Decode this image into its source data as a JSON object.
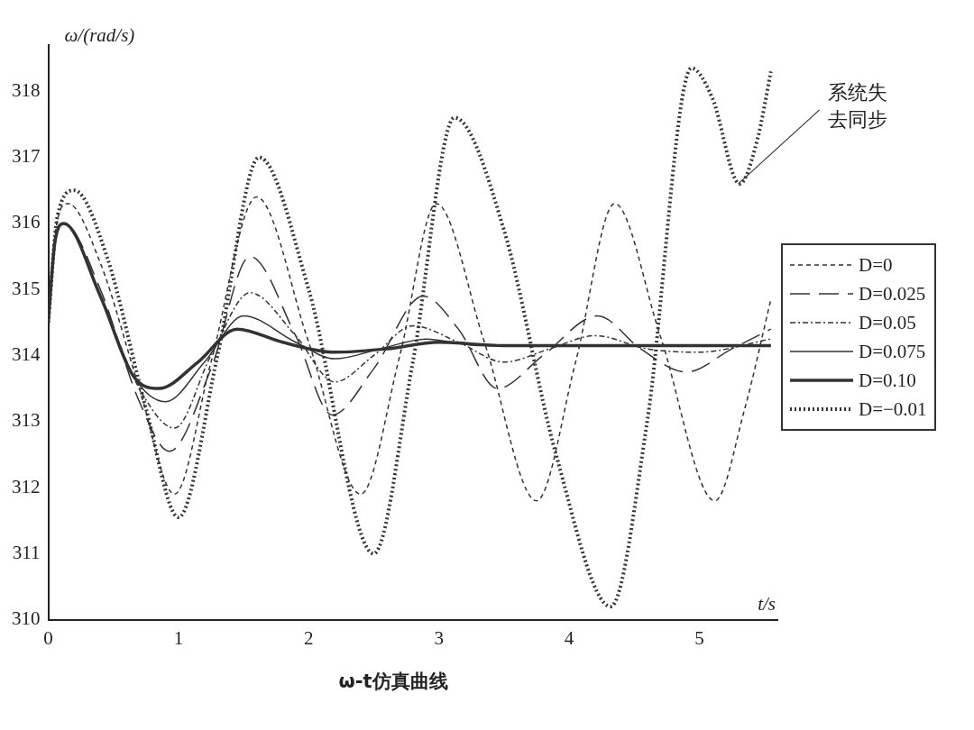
{
  "chart_data": {
    "type": "line",
    "title": "ω-t仿真曲线",
    "xlabel": "t/s",
    "ylabel": "ω/(rad/s)",
    "xlim": [
      0,
      5.6
    ],
    "ylim": [
      310,
      318.7
    ],
    "xticks": [
      0,
      1,
      2,
      3,
      4,
      5
    ],
    "yticks": [
      310,
      311,
      312,
      313,
      314,
      315,
      316,
      317,
      318
    ],
    "grid": false,
    "legend": "right",
    "marker": "none",
    "annotations": [
      {
        "text": "系统失去同步",
        "x": 5.3,
        "y": 316.6
      }
    ],
    "series": [
      {
        "name": "D=0",
        "color": "#333333",
        "line_style": "dashed",
        "x": [
          0,
          0.05,
          0.15,
          0.4,
          0.7,
          0.97,
          1.25,
          1.6,
          2.0,
          2.4,
          2.7,
          2.98,
          3.35,
          3.75,
          4.05,
          4.35,
          4.7,
          5.12,
          5.35,
          5.55
        ],
        "values": [
          314.5,
          315.8,
          316.3,
          315.4,
          313.5,
          311.9,
          313.9,
          316.4,
          314.2,
          311.9,
          314.0,
          316.3,
          314.2,
          311.8,
          313.9,
          316.3,
          314.3,
          311.8,
          313.2,
          314.85
        ]
      },
      {
        "name": "D=0.025",
        "color": "#333333",
        "line_style": "dashed",
        "x": [
          0,
          0.05,
          0.12,
          0.4,
          0.7,
          0.93,
          1.25,
          1.55,
          1.9,
          2.18,
          2.5,
          2.88,
          3.15,
          3.45,
          3.8,
          4.22,
          4.55,
          4.9,
          5.25,
          5.55
        ],
        "values": [
          314.5,
          315.7,
          316.0,
          315.0,
          313.3,
          312.55,
          313.8,
          315.5,
          314.3,
          313.1,
          313.8,
          314.9,
          314.4,
          313.5,
          314.0,
          314.6,
          314.1,
          313.75,
          314.1,
          314.4
        ]
      },
      {
        "name": "D=0.05",
        "color": "#333333",
        "line_style": "dashed",
        "x": [
          0,
          0.05,
          0.12,
          0.4,
          0.7,
          0.97,
          1.25,
          1.55,
          1.9,
          2.2,
          2.5,
          2.8,
          3.15,
          3.5,
          3.85,
          4.2,
          4.6,
          5.0,
          5.55
        ],
        "values": [
          314.5,
          315.7,
          316.0,
          314.9,
          313.5,
          312.9,
          314.0,
          314.95,
          314.3,
          313.6,
          314.0,
          314.45,
          314.2,
          313.9,
          314.1,
          314.3,
          314.1,
          314.05,
          314.25
        ]
      },
      {
        "name": "D=0.075",
        "color": "#333333",
        "line_style": "solid",
        "x": [
          0,
          0.05,
          0.12,
          0.4,
          0.65,
          0.9,
          1.2,
          1.5,
          1.9,
          2.2,
          2.55,
          2.9,
          3.3,
          3.8,
          4.5,
          5.55
        ],
        "values": [
          314.5,
          315.7,
          316.0,
          314.9,
          313.7,
          313.3,
          313.9,
          314.6,
          314.2,
          313.95,
          314.1,
          314.25,
          314.15,
          314.15,
          314.15,
          314.15
        ]
      },
      {
        "name": "D=0.10",
        "color": "#333333",
        "line_style": "solid",
        "x": [
          0,
          0.05,
          0.12,
          0.4,
          0.65,
          0.85,
          1.15,
          1.45,
          1.8,
          2.2,
          2.6,
          3.0,
          3.5,
          4.2,
          5.55
        ],
        "values": [
          314.5,
          315.7,
          316.0,
          314.9,
          313.7,
          313.5,
          313.9,
          314.4,
          314.2,
          314.05,
          314.1,
          314.2,
          314.15,
          314.15,
          314.15
        ]
      },
      {
        "name": "D=−0.01",
        "color": "#333333",
        "line_style": "dotted",
        "x": [
          0,
          0.07,
          0.2,
          0.45,
          0.75,
          1.0,
          1.3,
          1.62,
          2.0,
          2.5,
          2.8,
          3.12,
          3.5,
          3.9,
          4.32,
          4.6,
          4.94,
          5.1,
          5.31,
          5.45,
          5.55
        ],
        "values": [
          314.5,
          316.1,
          316.5,
          315.5,
          313.2,
          311.55,
          314.0,
          317.0,
          315.0,
          311.0,
          313.9,
          317.6,
          315.9,
          312.5,
          310.2,
          313.0,
          318.35,
          317.9,
          316.6,
          317.3,
          318.3
        ]
      }
    ]
  }
}
